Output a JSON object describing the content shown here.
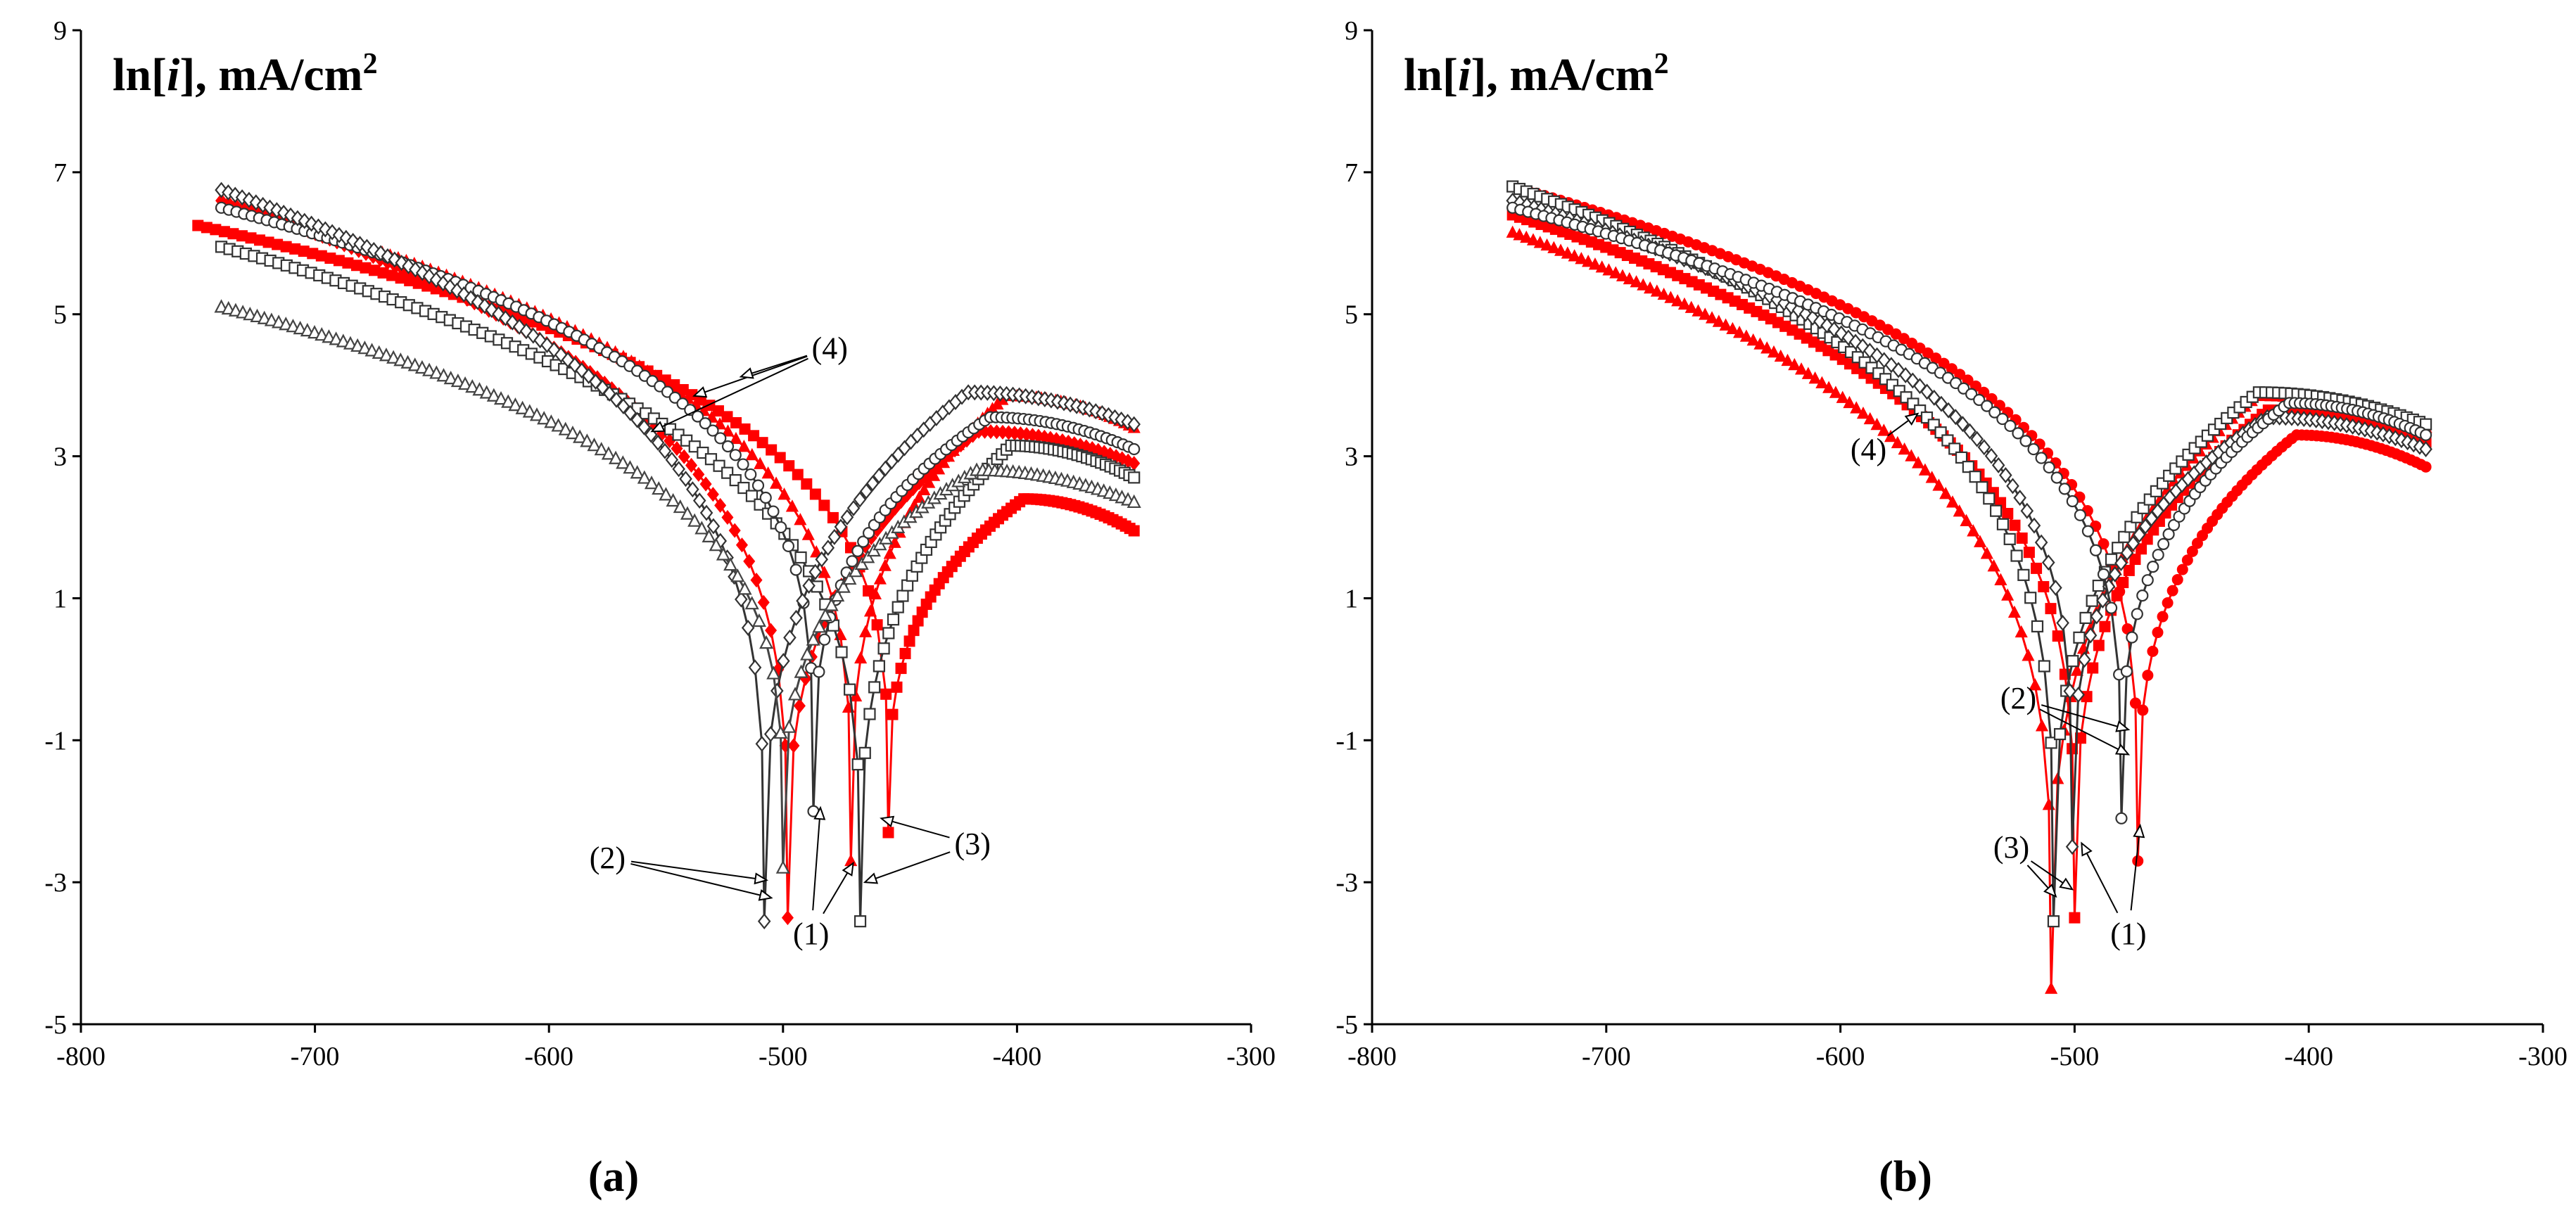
{
  "chart_data": [
    {
      "panel_label": "(a)",
      "type": "scatter",
      "ylabel_prefix": "ln[",
      "ylabel_var": "i",
      "ylabel_suffix": "], mA/cm",
      "ylabel_sup": "2",
      "xlim": [
        -800,
        -300
      ],
      "ylim": [
        -5,
        9
      ],
      "xticks": [
        -800,
        -700,
        -600,
        -500,
        -400,
        -300
      ],
      "yticks": [
        -5,
        -3,
        -1,
        1,
        3,
        5,
        7,
        9
      ],
      "series": [
        {
          "color": "#ff0000",
          "marker": "square",
          "start": [
            -750,
            6.25
          ],
          "ecorr": -455,
          "tip": -2.3,
          "end": [
            -350,
            1.95
          ]
        },
        {
          "color": "#ff0000",
          "marker": "triangle",
          "start": [
            -740,
            6.55
          ],
          "ecorr": -471,
          "tip": -2.7,
          "end": [
            -350,
            3.4
          ]
        },
        {
          "color": "#ff0000",
          "marker": "diamond",
          "start": [
            -740,
            6.6
          ],
          "ecorr": -498,
          "tip": -3.5,
          "end": [
            -350,
            2.9
          ]
        },
        {
          "color": "#333333",
          "marker": "square-open",
          "start": [
            -740,
            5.95
          ],
          "ecorr": -467,
          "tip": -3.55,
          "end": [
            -350,
            2.7
          ]
        },
        {
          "color": "#333333",
          "marker": "circle-open",
          "start": [
            -740,
            6.5
          ],
          "ecorr": -487,
          "tip": -2.0,
          "end": [
            -350,
            3.1
          ]
        },
        {
          "color": "#333333",
          "marker": "diamond-open",
          "start": [
            -740,
            6.75
          ],
          "ecorr": -508,
          "tip": -3.55,
          "end": [
            -350,
            3.45
          ]
        },
        {
          "color": "#444444",
          "marker": "triangle-open",
          "start": [
            -740,
            5.1
          ],
          "ecorr": -500,
          "tip": -2.8,
          "end": [
            -350,
            2.35
          ]
        }
      ],
      "annotations": [
        {
          "text": "(4)",
          "at": [
            -480,
            4.38
          ],
          "targets": [
            [
              -556,
              3.35
            ],
            [
              -538,
              3.85
            ],
            [
              -518,
              4.12
            ]
          ]
        },
        {
          "text": "(2)",
          "at": [
            -575,
            -2.8
          ],
          "targets": [
            [
              -507,
              -2.97
            ],
            [
              -505,
              -3.22
            ]
          ]
        },
        {
          "text": "(1)",
          "at": [
            -488,
            -3.87
          ],
          "targets": [
            [
              -484,
              -1.95
            ],
            [
              -470,
              -2.73
            ]
          ]
        },
        {
          "text": "(3)",
          "at": [
            -419,
            -2.6
          ],
          "targets": [
            [
              -458,
              -2.1
            ],
            [
              -465,
              -3.0
            ]
          ]
        }
      ]
    },
    {
      "panel_label": "(b)",
      "type": "scatter",
      "ylabel_prefix": "ln[",
      "ylabel_var": "i",
      "ylabel_suffix": "], mA/cm",
      "ylabel_sup": "2",
      "xlim": [
        -800,
        -300
      ],
      "ylim": [
        -5,
        9
      ],
      "xticks": [
        -800,
        -700,
        -600,
        -500,
        -400,
        -300
      ],
      "yticks": [
        -5,
        -3,
        -1,
        1,
        3,
        5,
        7,
        9
      ],
      "series": [
        {
          "color": "#ff0000",
          "marker": "triangle",
          "start": [
            -740,
            6.15
          ],
          "ecorr": -510,
          "tip": -4.5,
          "end": [
            -350,
            3.4
          ]
        },
        {
          "color": "#ff0000",
          "marker": "square",
          "start": [
            -740,
            6.4
          ],
          "ecorr": -500,
          "tip": -3.5,
          "end": [
            -350,
            3.2
          ]
        },
        {
          "color": "#ff0000",
          "marker": "circle",
          "start": [
            -740,
            6.8
          ],
          "ecorr": -473,
          "tip": -2.7,
          "end": [
            -350,
            2.85
          ]
        },
        {
          "color": "#333333",
          "marker": "square-open",
          "start": [
            -740,
            6.8
          ],
          "ecorr": -509,
          "tip": -3.55,
          "end": [
            -350,
            3.45
          ]
        },
        {
          "color": "#333333",
          "marker": "diamond-open",
          "start": [
            -740,
            6.6
          ],
          "ecorr": -501,
          "tip": -2.5,
          "end": [
            -350,
            3.1
          ]
        },
        {
          "color": "#333333",
          "marker": "circle-open",
          "start": [
            -740,
            6.5
          ],
          "ecorr": -480,
          "tip": -2.1,
          "end": [
            -350,
            3.3
          ]
        }
      ],
      "annotations": [
        {
          "text": "(4)",
          "at": [
            -588,
            2.95
          ],
          "targets": [
            [
              -567,
              3.6
            ]
          ]
        },
        {
          "text": "(2)",
          "at": [
            -524,
            -0.55
          ],
          "targets": [
            [
              -477,
              -0.85
            ],
            [
              -477,
              -1.2
            ]
          ]
        },
        {
          "text": "(3)",
          "at": [
            -527,
            -2.65
          ],
          "targets": [
            [
              -508,
              -3.2
            ],
            [
              -501,
              -3.1
            ]
          ]
        },
        {
          "text": "(1)",
          "at": [
            -477,
            -3.87
          ],
          "targets": [
            [
              -497,
              -2.45
            ],
            [
              -472,
              -2.2
            ]
          ]
        }
      ]
    }
  ]
}
